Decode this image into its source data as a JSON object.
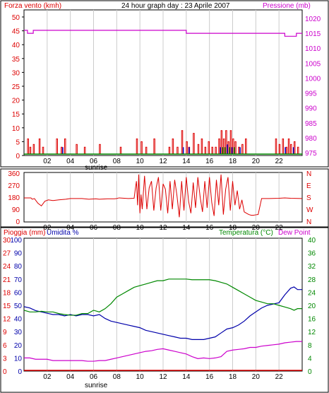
{
  "chart_data": [
    {
      "type": "line",
      "panel": "wind-pressure",
      "title": "24 hour graph day : 23 Aprile 2007",
      "left_label": "Forza vento (kmh)",
      "right_label": "Pressione (mb)",
      "x_ticks": [
        "02",
        "04",
        "06",
        "08",
        "10",
        "12",
        "14",
        "16",
        "18",
        "20",
        "22"
      ],
      "sunrise_label": "sunrise",
      "sunrise_hour": 6.3,
      "left_ylim": [
        0,
        50
      ],
      "left_ticks": [
        "0",
        "5",
        "10",
        "15",
        "20",
        "25",
        "30",
        "35",
        "40",
        "45",
        "50"
      ],
      "right_ylim": [
        975,
        1020
      ],
      "right_ticks": [
        "975",
        "980",
        "985",
        "990",
        "995",
        "1000",
        "1005",
        "1010",
        "1015",
        "1020"
      ],
      "colors": {
        "wind_red": "#dd0000",
        "wind_blue": "#0000cc",
        "wind_green": "#008800",
        "pressure": "#cc00cc",
        "baseline": "#008800"
      },
      "pressure_series": [
        [
          0,
          1016
        ],
        [
          0.3,
          1016
        ],
        [
          0.3,
          1015
        ],
        [
          0.8,
          1015
        ],
        [
          0.8,
          1016
        ],
        [
          2,
          1016
        ],
        [
          2,
          1016
        ],
        [
          3,
          1016
        ],
        [
          10,
          1016
        ],
        [
          13,
          1016
        ],
        [
          13,
          1016
        ],
        [
          14,
          1016
        ],
        [
          14,
          1015
        ],
        [
          18.5,
          1015
        ],
        [
          18.5,
          1015
        ],
        [
          19.5,
          1015
        ],
        [
          19.5,
          1015
        ],
        [
          22.5,
          1015
        ],
        [
          22.5,
          1014
        ],
        [
          23.5,
          1014
        ],
        [
          23.5,
          1015
        ],
        [
          24,
          1015
        ]
      ],
      "wind_red_bars": [
        [
          0.3,
          6
        ],
        [
          0.5,
          3
        ],
        [
          0.8,
          4
        ],
        [
          1.3,
          6
        ],
        [
          1.6,
          3
        ],
        [
          2.8,
          6
        ],
        [
          3.2,
          3
        ],
        [
          3.5,
          6
        ],
        [
          4.5,
          4
        ],
        [
          5.2,
          3
        ],
        [
          6.5,
          4
        ],
        [
          8.3,
          3
        ],
        [
          9.7,
          6
        ],
        [
          10.1,
          5
        ],
        [
          10.5,
          3
        ],
        [
          11.2,
          6
        ],
        [
          12.5,
          3
        ],
        [
          12.8,
          6
        ],
        [
          13.2,
          3
        ],
        [
          13.6,
          9
        ],
        [
          14.0,
          5
        ],
        [
          14.2,
          3
        ],
        [
          14.6,
          8
        ],
        [
          15.0,
          4
        ],
        [
          15.3,
          6
        ],
        [
          15.6,
          3
        ],
        [
          15.9,
          5
        ],
        [
          16.2,
          3
        ],
        [
          16.5,
          3
        ],
        [
          16.8,
          6
        ],
        [
          17.0,
          9
        ],
        [
          17.2,
          6
        ],
        [
          17.4,
          9
        ],
        [
          17.6,
          5
        ],
        [
          17.8,
          9
        ],
        [
          18.0,
          6
        ],
        [
          18.2,
          5
        ],
        [
          18.5,
          3
        ],
        [
          18.8,
          4
        ],
        [
          19.1,
          6
        ],
        [
          21.7,
          6
        ],
        [
          22.0,
          4
        ],
        [
          22.3,
          6
        ],
        [
          22.6,
          3
        ],
        [
          22.8,
          6
        ],
        [
          23.0,
          4
        ],
        [
          23.3,
          5
        ],
        [
          23.6,
          3
        ]
      ],
      "wind_blue_bars": [
        [
          3.3,
          3
        ],
        [
          13.7,
          3
        ],
        [
          14.2,
          3
        ],
        [
          16.9,
          3
        ],
        [
          17.5,
          4
        ],
        [
          17.9,
          3
        ],
        [
          18.6,
          3
        ],
        [
          22.5,
          3
        ],
        [
          23.2,
          3
        ]
      ],
      "wind_green_bars": [
        [
          17.1,
          3
        ],
        [
          17.3,
          3
        ],
        [
          17.7,
          3
        ],
        [
          18.1,
          3
        ]
      ]
    },
    {
      "type": "line",
      "panel": "wind-direction",
      "left_ticks": [
        "0",
        "90",
        "180",
        "270",
        "360"
      ],
      "left_ylim": [
        0,
        360
      ],
      "right_ticks": [
        "N",
        "W",
        "S",
        "E",
        "N"
      ],
      "x_ticks": [
        "02",
        "04",
        "06",
        "08",
        "10",
        "12",
        "14",
        "16",
        "18",
        "20",
        "22"
      ],
      "color": "#dd0000",
      "direction_series": [
        [
          0,
          175
        ],
        [
          0.6,
          175
        ],
        [
          0.7,
          165
        ],
        [
          0.9,
          170
        ],
        [
          1.2,
          135
        ],
        [
          1.5,
          115
        ],
        [
          1.8,
          150
        ],
        [
          2.1,
          160
        ],
        [
          2.5,
          155
        ],
        [
          3.0,
          160
        ],
        [
          3.6,
          165
        ],
        [
          4.0,
          170
        ],
        [
          5.0,
          170
        ],
        [
          5.6,
          165
        ],
        [
          6.2,
          168
        ],
        [
          6.5,
          165
        ],
        [
          7.2,
          168
        ],
        [
          7.8,
          168
        ],
        [
          8.0,
          170
        ],
        [
          8.2,
          175
        ],
        [
          9.0,
          170
        ],
        [
          9.5,
          172
        ],
        [
          9.6,
          240
        ],
        [
          9.7,
          300
        ],
        [
          9.8,
          120
        ],
        [
          9.9,
          350
        ],
        [
          10.0,
          60
        ],
        [
          10.1,
          200
        ],
        [
          10.2,
          90
        ],
        [
          10.4,
          340
        ],
        [
          10.6,
          90
        ],
        [
          10.8,
          250
        ],
        [
          11.0,
          300
        ],
        [
          11.2,
          80
        ],
        [
          11.4,
          250
        ],
        [
          11.6,
          330
        ],
        [
          11.8,
          80
        ],
        [
          12.0,
          280
        ],
        [
          12.2,
          240
        ],
        [
          12.4,
          60
        ],
        [
          12.6,
          300
        ],
        [
          12.8,
          90
        ],
        [
          13.0,
          310
        ],
        [
          13.2,
          190
        ],
        [
          13.4,
          30
        ],
        [
          13.6,
          300
        ],
        [
          13.8,
          80
        ],
        [
          14.0,
          330
        ],
        [
          14.2,
          150
        ],
        [
          14.4,
          60
        ],
        [
          14.6,
          290
        ],
        [
          14.8,
          100
        ],
        [
          15.0,
          330
        ],
        [
          15.2,
          180
        ],
        [
          15.4,
          70
        ],
        [
          15.6,
          300
        ],
        [
          15.8,
          100
        ],
        [
          16.0,
          330
        ],
        [
          16.2,
          140
        ],
        [
          16.4,
          40
        ],
        [
          16.6,
          310
        ],
        [
          16.8,
          120
        ],
        [
          17.0,
          350
        ],
        [
          17.2,
          50
        ],
        [
          17.4,
          240
        ],
        [
          17.6,
          330
        ],
        [
          17.8,
          80
        ],
        [
          18.0,
          300
        ],
        [
          18.2,
          120
        ],
        [
          18.4,
          230
        ],
        [
          18.6,
          90
        ],
        [
          18.8,
          160
        ],
        [
          19.0,
          70
        ],
        [
          19.2,
          60
        ],
        [
          19.4,
          50
        ],
        [
          19.6,
          45
        ],
        [
          19.8,
          45
        ],
        [
          20.0,
          48
        ],
        [
          20.2,
          50
        ],
        [
          20.5,
          170
        ],
        [
          21.0,
          170
        ],
        [
          22.0,
          172
        ],
        [
          22.5,
          175
        ],
        [
          23.0,
          172
        ],
        [
          24,
          170
        ]
      ]
    },
    {
      "type": "line",
      "panel": "rain-humidity-temperature",
      "rain_label": "Pioggia (mm)",
      "humidity_label": "Umidita %",
      "temperature_label": "Temperatura (°C)",
      "dewpoint_label": "Dew Point",
      "left_ticks_humidity": [
        "0",
        "10",
        "20",
        "30",
        "40",
        "50",
        "60",
        "70",
        "80",
        "90",
        "100"
      ],
      "left_ticks_rain": [
        "0",
        "3",
        "6",
        "9",
        "12",
        "15",
        "18",
        "21",
        "24",
        "27",
        "30"
      ],
      "right_ticks": [
        "0",
        "4",
        "8",
        "12",
        "16",
        "20",
        "24",
        "28",
        "32",
        "36",
        "40"
      ],
      "left_ylim": [
        0,
        100
      ],
      "right_ylim": [
        0,
        40
      ],
      "x_ticks": [
        "02",
        "04",
        "06",
        "08",
        "10",
        "12",
        "14",
        "16",
        "18",
        "20",
        "22"
      ],
      "sunrise_label": "sunrise",
      "colors": {
        "humidity": "#0000aa",
        "temperature": "#008800",
        "dewpoint": "#cc00cc",
        "rain": "#dd0000"
      },
      "humidity_series": [
        [
          0,
          49
        ],
        [
          0.5,
          48
        ],
        [
          1,
          46
        ],
        [
          1.5,
          45
        ],
        [
          2,
          44
        ],
        [
          2.5,
          43
        ],
        [
          3,
          43
        ],
        [
          3.5,
          42
        ],
        [
          4,
          43
        ],
        [
          4.5,
          42
        ],
        [
          5,
          43
        ],
        [
          5.5,
          43
        ],
        [
          6,
          42
        ],
        [
          6.5,
          43
        ],
        [
          7,
          40
        ],
        [
          7.5,
          38
        ],
        [
          8,
          37
        ],
        [
          8.5,
          36
        ],
        [
          9,
          35
        ],
        [
          9.5,
          34
        ],
        [
          10,
          33
        ],
        [
          10.5,
          31
        ],
        [
          11,
          30
        ],
        [
          11.5,
          29
        ],
        [
          12,
          28
        ],
        [
          12.5,
          27
        ],
        [
          13,
          26
        ],
        [
          13.5,
          25
        ],
        [
          14,
          25
        ],
        [
          14.5,
          24
        ],
        [
          15,
          24
        ],
        [
          15.5,
          24
        ],
        [
          16,
          25
        ],
        [
          16.5,
          26
        ],
        [
          17,
          29
        ],
        [
          17.5,
          32
        ],
        [
          18,
          33
        ],
        [
          18.5,
          35
        ],
        [
          19,
          38
        ],
        [
          19.5,
          42
        ],
        [
          20,
          45
        ],
        [
          20.5,
          48
        ],
        [
          21,
          50
        ],
        [
          21.5,
          51
        ],
        [
          22,
          52
        ],
        [
          22.5,
          58
        ],
        [
          23,
          63
        ],
        [
          23.3,
          64
        ],
        [
          23.6,
          62
        ],
        [
          24,
          62
        ]
      ],
      "temperature_series": [
        [
          0,
          18.5
        ],
        [
          0.5,
          18
        ],
        [
          1,
          18
        ],
        [
          1.5,
          18.2
        ],
        [
          2,
          18
        ],
        [
          2.5,
          18
        ],
        [
          3,
          17.5
        ],
        [
          3.5,
          17.2
        ],
        [
          4,
          17
        ],
        [
          4.5,
          17
        ],
        [
          5,
          17.5
        ],
        [
          5.5,
          17.5
        ],
        [
          6,
          18.5
        ],
        [
          6.5,
          18
        ],
        [
          7,
          19
        ],
        [
          7.5,
          20.5
        ],
        [
          8,
          22.5
        ],
        [
          8.5,
          23.5
        ],
        [
          9,
          24.5
        ],
        [
          9.5,
          25.5
        ],
        [
          10,
          26
        ],
        [
          10.5,
          26.5
        ],
        [
          11,
          27
        ],
        [
          11.5,
          27.5
        ],
        [
          12,
          27.5
        ],
        [
          12.5,
          28
        ],
        [
          13,
          28
        ],
        [
          13.5,
          28
        ],
        [
          14,
          28
        ],
        [
          14.5,
          27.8
        ],
        [
          15,
          27.8
        ],
        [
          15.5,
          27.8
        ],
        [
          16,
          27.8
        ],
        [
          16.5,
          27.5
        ],
        [
          17,
          27
        ],
        [
          17.5,
          26.5
        ],
        [
          18,
          25.5
        ],
        [
          18.5,
          24.5
        ],
        [
          19,
          23.5
        ],
        [
          19.5,
          22.5
        ],
        [
          20,
          21.5
        ],
        [
          20.5,
          21
        ],
        [
          21,
          20.5
        ],
        [
          21.5,
          20.5
        ],
        [
          22,
          20
        ],
        [
          22.5,
          19.5
        ],
        [
          23,
          19
        ],
        [
          23.3,
          18.5
        ],
        [
          23.6,
          19
        ],
        [
          24,
          19
        ]
      ],
      "dewpoint_series": [
        [
          0,
          10
        ],
        [
          0.5,
          10
        ],
        [
          1,
          9
        ],
        [
          1.5,
          9
        ],
        [
          2,
          9
        ],
        [
          2.5,
          8
        ],
        [
          3,
          8
        ],
        [
          3.5,
          8
        ],
        [
          4,
          8
        ],
        [
          4.5,
          8
        ],
        [
          5,
          8
        ],
        [
          5.5,
          7.5
        ],
        [
          6,
          7.5
        ],
        [
          6.5,
          8
        ],
        [
          7,
          8
        ],
        [
          7.5,
          9
        ],
        [
          8,
          10
        ],
        [
          8.5,
          11
        ],
        [
          9,
          12
        ],
        [
          9.5,
          13
        ],
        [
          10,
          14
        ],
        [
          10.5,
          15
        ],
        [
          11,
          15.5
        ],
        [
          11.5,
          16.5
        ],
        [
          12,
          17
        ],
        [
          12.5,
          16
        ],
        [
          13,
          15
        ],
        [
          13.5,
          14
        ],
        [
          14,
          13
        ],
        [
          14.5,
          11
        ],
        [
          15,
          9.5
        ],
        [
          15.5,
          10
        ],
        [
          16,
          9.5
        ],
        [
          16.5,
          10
        ],
        [
          17,
          11
        ],
        [
          17.5,
          15
        ],
        [
          18,
          16
        ],
        [
          18.5,
          16.5
        ],
        [
          19,
          17
        ],
        [
          19.5,
          18
        ],
        [
          20,
          18
        ],
        [
          20.5,
          19
        ],
        [
          21,
          19.5
        ],
        [
          21.5,
          20
        ],
        [
          22,
          20.5
        ],
        [
          22.5,
          21.5
        ],
        [
          23,
          22
        ],
        [
          23.5,
          22.5
        ],
        [
          24,
          22.5
        ]
      ]
    }
  ]
}
